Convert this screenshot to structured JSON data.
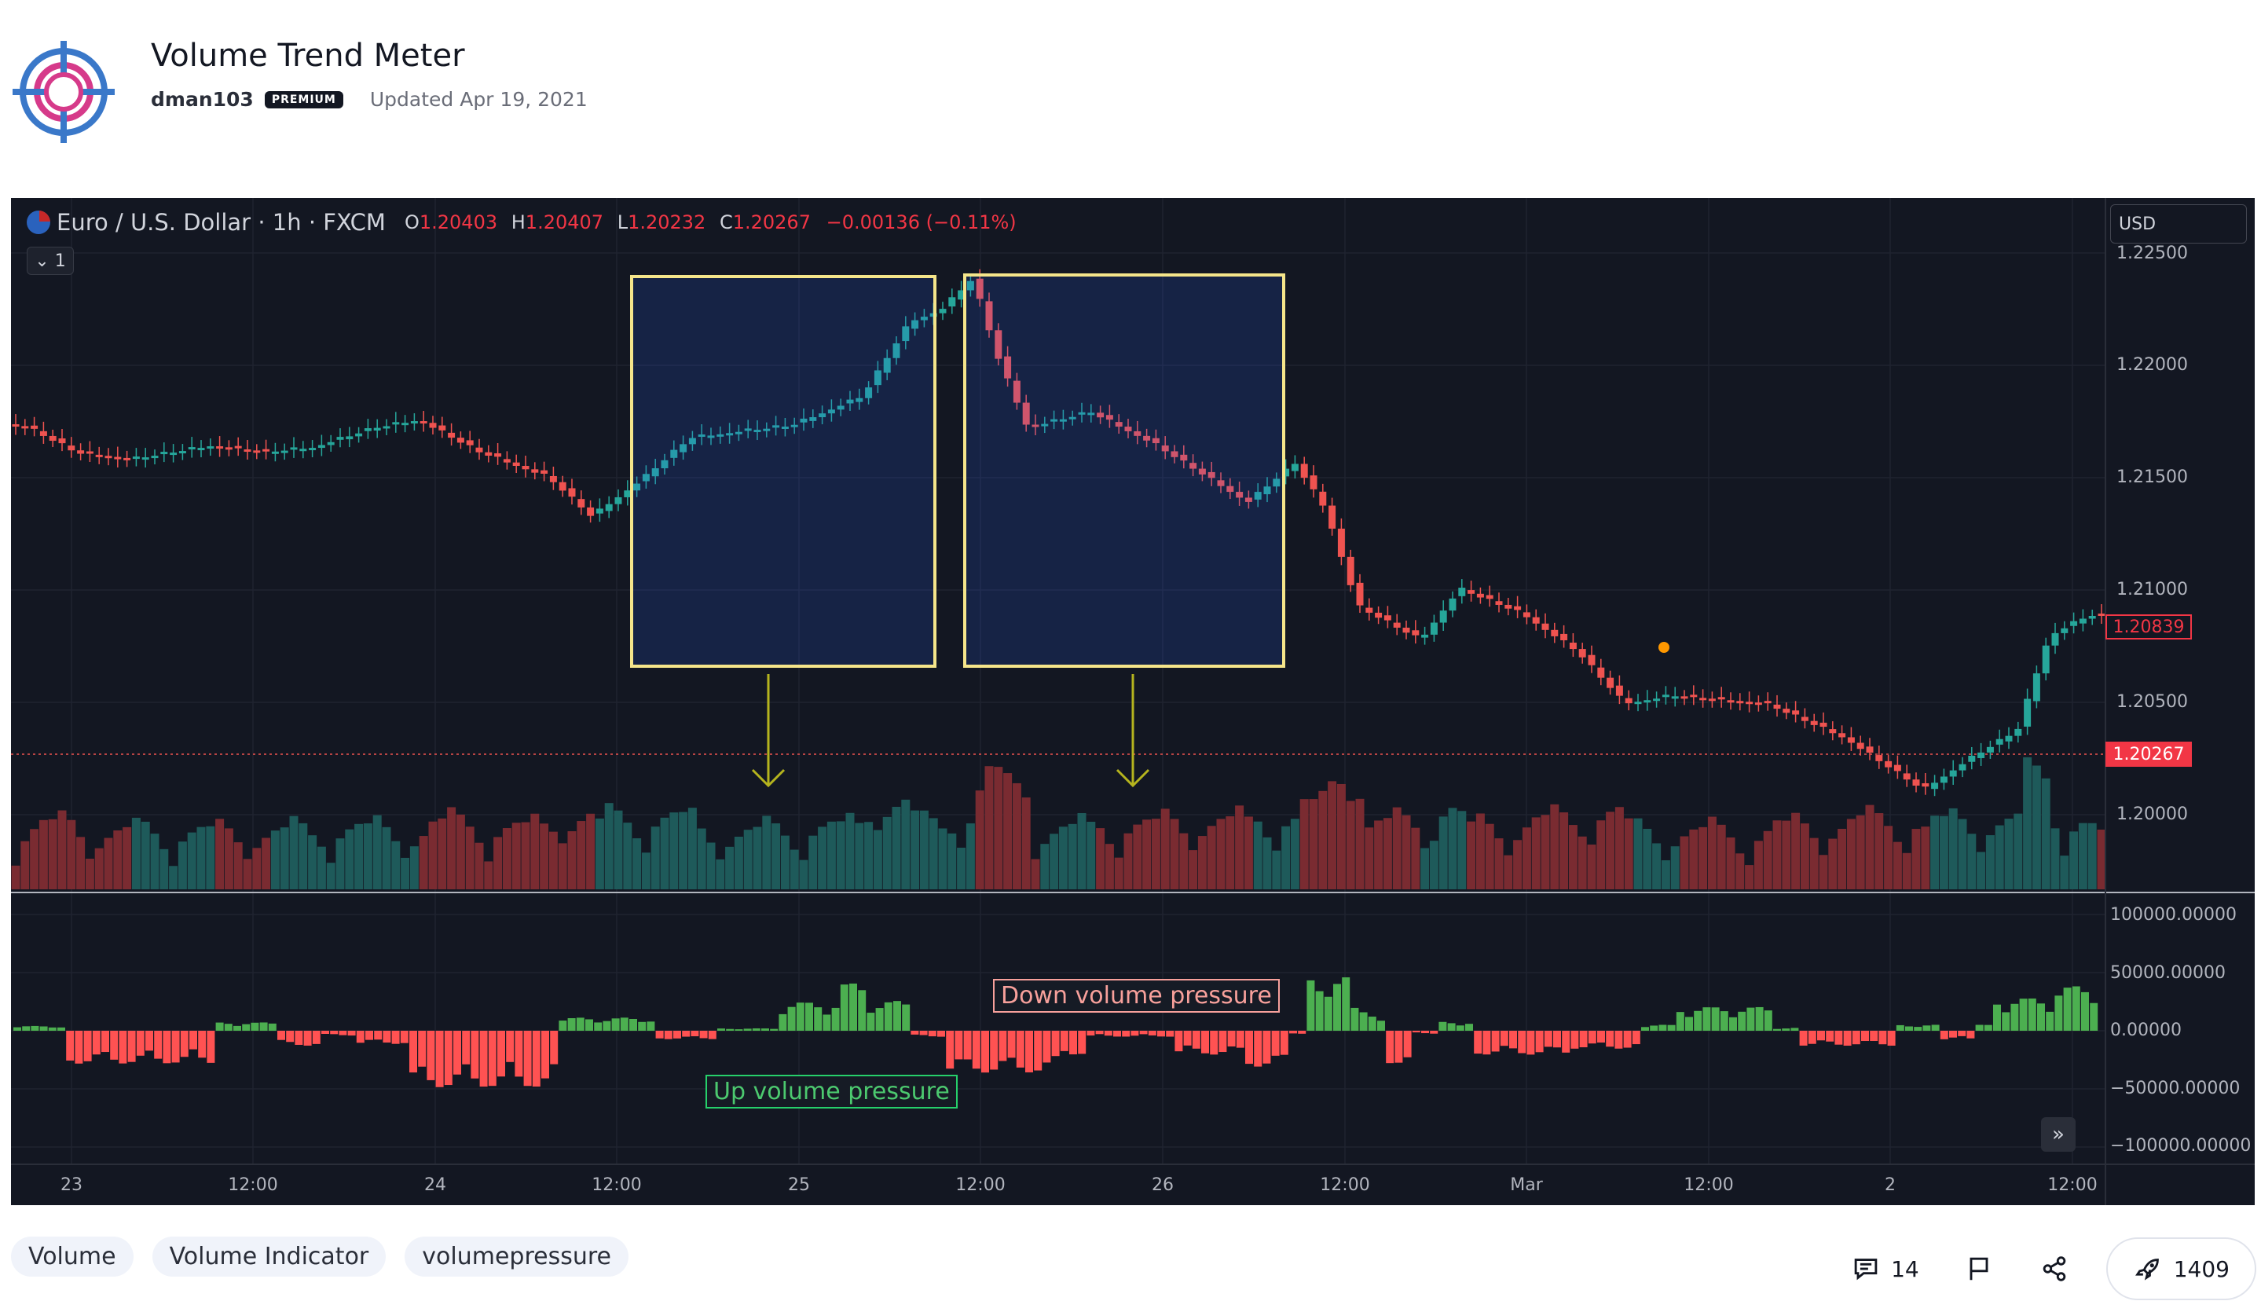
{
  "header": {
    "title": "Volume Trend Meter",
    "author": "dman103",
    "badge": "PREMIUM",
    "updated": "Updated Apr 19, 2021"
  },
  "chart": {
    "symbol": "Euro / U.S. Dollar · 1h · FXCM",
    "ohlc": [
      {
        "k": "O",
        "v": "1.20403"
      },
      {
        "k": "H",
        "v": "1.20407"
      },
      {
        "k": "L",
        "v": "1.20232"
      },
      {
        "k": "C",
        "v": "1.20267"
      }
    ],
    "change": "−0.00136 (−0.11%)",
    "collapse_label": "1",
    "currency": "USD",
    "price_axis": [
      "1.22500",
      "1.22000",
      "1.21500",
      "1.21000",
      "1.20500",
      "1.20000"
    ],
    "indicator_axis": [
      "100000.00000",
      "50000.00000",
      "0.00000",
      "−50000.00000",
      "−100000.00000"
    ],
    "time_axis": [
      "23",
      "12:00",
      "24",
      "12:00",
      "25",
      "12:00",
      "26",
      "12:00",
      "Mar",
      "12:00",
      "2",
      "12:00"
    ],
    "price_high_tag": "1.20839",
    "price_current_tag": "1.20267",
    "annotation_down": "Down volume pressure",
    "annotation_up": "Up volume pressure",
    "colors": {
      "up": "#26a69a",
      "down": "#ef5350",
      "osc_up": "#4caf50",
      "osc_down": "#ff5252",
      "highlight": "#f5e58a"
    }
  },
  "tags": [
    "Volume",
    "Volume Indicator",
    "volumepressure"
  ],
  "actions": {
    "comments": "14",
    "boosts": "1409"
  }
}
